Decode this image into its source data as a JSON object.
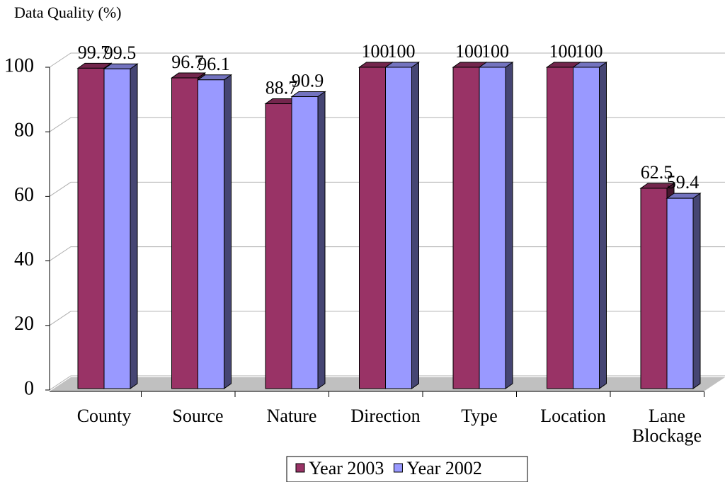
{
  "chart_data": {
    "type": "bar3d",
    "title": "Data Quality (%)",
    "categories": [
      "County",
      "Source",
      "Nature",
      "Direction",
      "Type",
      "Location",
      "Lane Blockage"
    ],
    "series": [
      {
        "name": "Year 2003",
        "color": "#993366",
        "values": [
          99.7,
          96.7,
          88.7,
          100,
          100,
          100,
          62.5
        ]
      },
      {
        "name": "Year 2002",
        "color": "#9999ff",
        "values": [
          99.5,
          96.1,
          90.9,
          100,
          100,
          100,
          59.4
        ]
      }
    ],
    "ylim": [
      0,
      100
    ],
    "yticks": [
      0,
      20,
      40,
      60,
      80,
      100
    ],
    "grid": true,
    "legend": "bottom"
  }
}
